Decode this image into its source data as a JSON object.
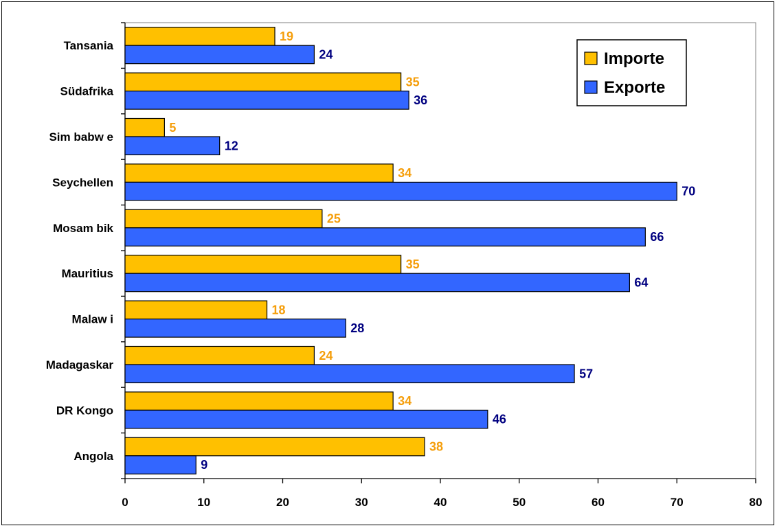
{
  "chart_data": {
    "type": "bar",
    "orientation": "horizontal",
    "categories": [
      "Angola",
      "DR Kongo",
      "Madagaskar",
      "Malawi",
      "Mauritius",
      "Mosambik",
      "Seychellen",
      "Simbabwe",
      "Südafrika",
      "Tansania"
    ],
    "category_labels": [
      "Angola",
      "DR Kongo",
      "Madagaskar",
      "Malaw i",
      "Mauritius",
      "Mosam bik",
      "Seychellen",
      "Sim babw e",
      "Südafrika",
      "Tansania"
    ],
    "series": [
      {
        "name": "Importe",
        "color": "#FFC000",
        "label_color": "#F59E0B",
        "values": [
          38,
          34,
          24,
          18,
          35,
          25,
          34,
          5,
          35,
          19
        ]
      },
      {
        "name": "Exporte",
        "color": "#3366FF",
        "label_color": "#000080",
        "values": [
          9,
          46,
          57,
          28,
          64,
          66,
          70,
          12,
          36,
          24
        ]
      }
    ],
    "xlim": [
      0,
      80
    ],
    "xticks": [
      "0",
      "10",
      "20",
      "30",
      "40",
      "50",
      "60",
      "70",
      "80"
    ],
    "title": "",
    "xlabel": "",
    "ylabel": "",
    "grid": false,
    "legend_position": "top-right"
  }
}
